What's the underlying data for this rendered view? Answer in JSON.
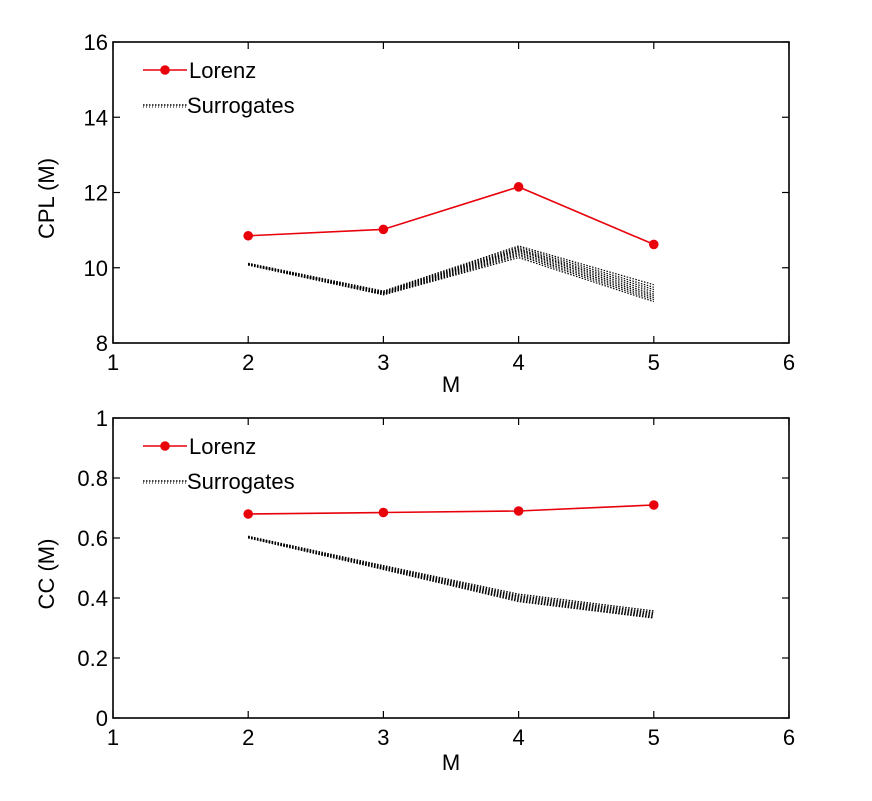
{
  "chart_data": [
    {
      "type": "line",
      "xlabel": "M",
      "ylabel": "CPL (M)",
      "xlim": [
        1,
        6
      ],
      "ylim": [
        8,
        16
      ],
      "xticks": [
        "1",
        "2",
        "3",
        "4",
        "5",
        "6"
      ],
      "yticks": [
        "8",
        "10",
        "12",
        "14",
        "16"
      ],
      "legend_position": "top-left",
      "legend": [
        "Lorenz",
        "Surrogates"
      ],
      "series": [
        {
          "name": "Lorenz",
          "color": "#e8000b",
          "style": "solid-marker",
          "x": [
            2,
            3,
            4,
            5
          ],
          "values": [
            10.85,
            11.02,
            12.15,
            10.62
          ]
        }
      ],
      "surrogates": {
        "name": "Surrogates",
        "color": "#000000",
        "style": "dotted",
        "x": [
          2,
          3,
          4,
          5
        ],
        "lines": [
          [
            10.12,
            9.38,
            10.58,
            9.55
          ],
          [
            10.11,
            9.36,
            10.54,
            9.48
          ],
          [
            10.1,
            9.35,
            10.5,
            9.42
          ],
          [
            10.1,
            9.34,
            10.47,
            9.36
          ],
          [
            10.09,
            9.33,
            10.44,
            9.3
          ],
          [
            10.09,
            9.32,
            10.4,
            9.25
          ],
          [
            10.08,
            9.3,
            10.36,
            9.2
          ],
          [
            10.08,
            9.29,
            10.32,
            9.15
          ],
          [
            10.07,
            9.28,
            10.27,
            9.1
          ]
        ]
      }
    },
    {
      "type": "line",
      "xlabel": "M",
      "ylabel": "CC (M)",
      "xlim": [
        1,
        6
      ],
      "ylim": [
        0,
        1
      ],
      "xticks": [
        "1",
        "2",
        "3",
        "4",
        "5",
        "6"
      ],
      "yticks": [
        "0",
        "0.2",
        "0.4",
        "0.6",
        "0.8",
        "1"
      ],
      "legend_position": "top-left",
      "legend": [
        "Lorenz",
        "Surrogates"
      ],
      "series": [
        {
          "name": "Lorenz",
          "color": "#e8000b",
          "style": "solid-marker",
          "x": [
            2,
            3,
            4,
            5
          ],
          "values": [
            0.68,
            0.685,
            0.69,
            0.71
          ]
        }
      ],
      "surrogates": {
        "name": "Surrogates",
        "color": "#000000",
        "style": "dotted",
        "x": [
          2,
          3,
          4,
          5
        ],
        "lines": [
          [
            0.606,
            0.508,
            0.413,
            0.357
          ],
          [
            0.605,
            0.505,
            0.408,
            0.352
          ],
          [
            0.604,
            0.503,
            0.404,
            0.348
          ],
          [
            0.603,
            0.501,
            0.4,
            0.344
          ],
          [
            0.602,
            0.499,
            0.396,
            0.34
          ],
          [
            0.601,
            0.497,
            0.392,
            0.336
          ],
          [
            0.6,
            0.495,
            0.388,
            0.333
          ]
        ]
      }
    }
  ]
}
